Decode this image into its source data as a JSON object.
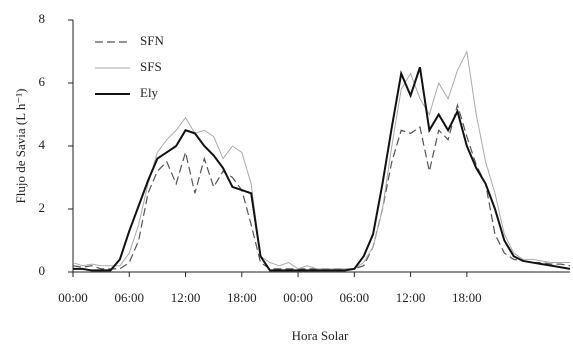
{
  "chart_data": {
    "type": "line",
    "xlabel": "Hora Solar",
    "ylabel": "Flujo de Savia (L h⁻¹)",
    "x": [
      0,
      1,
      2,
      3,
      4,
      5,
      6,
      7,
      8,
      9,
      10,
      11,
      12,
      13,
      14,
      15,
      16,
      17,
      18,
      19,
      20,
      21,
      22,
      23,
      24,
      25,
      26,
      27,
      28,
      29,
      30,
      31,
      32,
      33,
      34,
      35,
      36,
      37,
      38,
      39,
      40,
      41,
      42,
      43,
      44,
      45,
      46,
      47,
      48,
      49,
      50,
      51,
      52,
      53
    ],
    "series": [
      {
        "name": "SFN",
        "color": "#555555",
        "dash": true,
        "width": 1.2,
        "values": [
          0.2,
          0.15,
          0.2,
          0.1,
          0.1,
          0.1,
          0.3,
          1.0,
          2.5,
          3.2,
          3.5,
          2.8,
          3.8,
          2.5,
          3.6,
          2.7,
          3.2,
          3.0,
          2.6,
          1.5,
          0.3,
          0.1,
          0.1,
          0.1,
          0.1,
          0.1,
          0.1,
          0.1,
          0.1,
          0.1,
          0.1,
          0.2,
          0.8,
          2.0,
          3.5,
          4.5,
          4.4,
          4.6,
          3.2,
          4.5,
          4.2,
          5.3,
          4.3,
          3.4,
          2.8,
          1.2,
          0.6,
          0.4,
          0.35,
          0.3,
          0.3,
          0.25,
          0.25,
          0.2
        ]
      },
      {
        "name": "SFS",
        "color": "#aaaaaa",
        "dash": false,
        "width": 1,
        "values": [
          0.3,
          0.2,
          0.25,
          0.2,
          0.2,
          0.2,
          0.6,
          1.5,
          2.8,
          3.8,
          4.2,
          4.5,
          4.9,
          4.4,
          4.5,
          4.3,
          3.6,
          4.0,
          3.8,
          2.8,
          0.5,
          0.3,
          0.2,
          0.3,
          0.1,
          0.2,
          0.1,
          0.1,
          0.1,
          0.1,
          0.1,
          0.3,
          0.8,
          2.0,
          4.0,
          5.8,
          6.3,
          5.5,
          5.0,
          6.0,
          5.5,
          6.4,
          7.0,
          5.0,
          3.5,
          2.5,
          1.2,
          0.6,
          0.4,
          0.4,
          0.35,
          0.3,
          0.3,
          0.3
        ]
      },
      {
        "name": "Ely",
        "color": "#111111",
        "dash": false,
        "width": 2,
        "values": [
          0.1,
          0.1,
          0.05,
          0.05,
          0.05,
          0.4,
          1.3,
          2.1,
          2.9,
          3.6,
          3.8,
          4.0,
          4.5,
          4.4,
          4.0,
          3.7,
          3.3,
          2.7,
          2.6,
          2.5,
          0.5,
          0.05,
          0.05,
          0.05,
          0.05,
          0.05,
          0.05,
          0.05,
          0.05,
          0.05,
          0.1,
          0.5,
          1.2,
          2.8,
          4.6,
          6.3,
          5.6,
          6.5,
          4.5,
          5.0,
          4.5,
          5.1,
          4.0,
          3.3,
          2.8,
          2.0,
          1.0,
          0.5,
          0.35,
          0.3,
          0.25,
          0.2,
          0.15,
          0.1
        ]
      }
    ],
    "xlim": [
      0,
      53
    ],
    "xticks": [
      {
        "value": 0,
        "label": "00:00"
      },
      {
        "value": 6,
        "label": "06:00"
      },
      {
        "value": 12,
        "label": "12:00"
      },
      {
        "value": 18,
        "label": "18:00"
      },
      {
        "value": 24,
        "label": "00:00"
      },
      {
        "value": 30,
        "label": "06:00"
      },
      {
        "value": 36,
        "label": "12:00"
      },
      {
        "value": 42,
        "label": "18:00"
      }
    ],
    "ylim": [
      0,
      8
    ],
    "yticks": [
      0,
      2,
      4,
      6,
      8
    ],
    "legend": "upper-left"
  }
}
